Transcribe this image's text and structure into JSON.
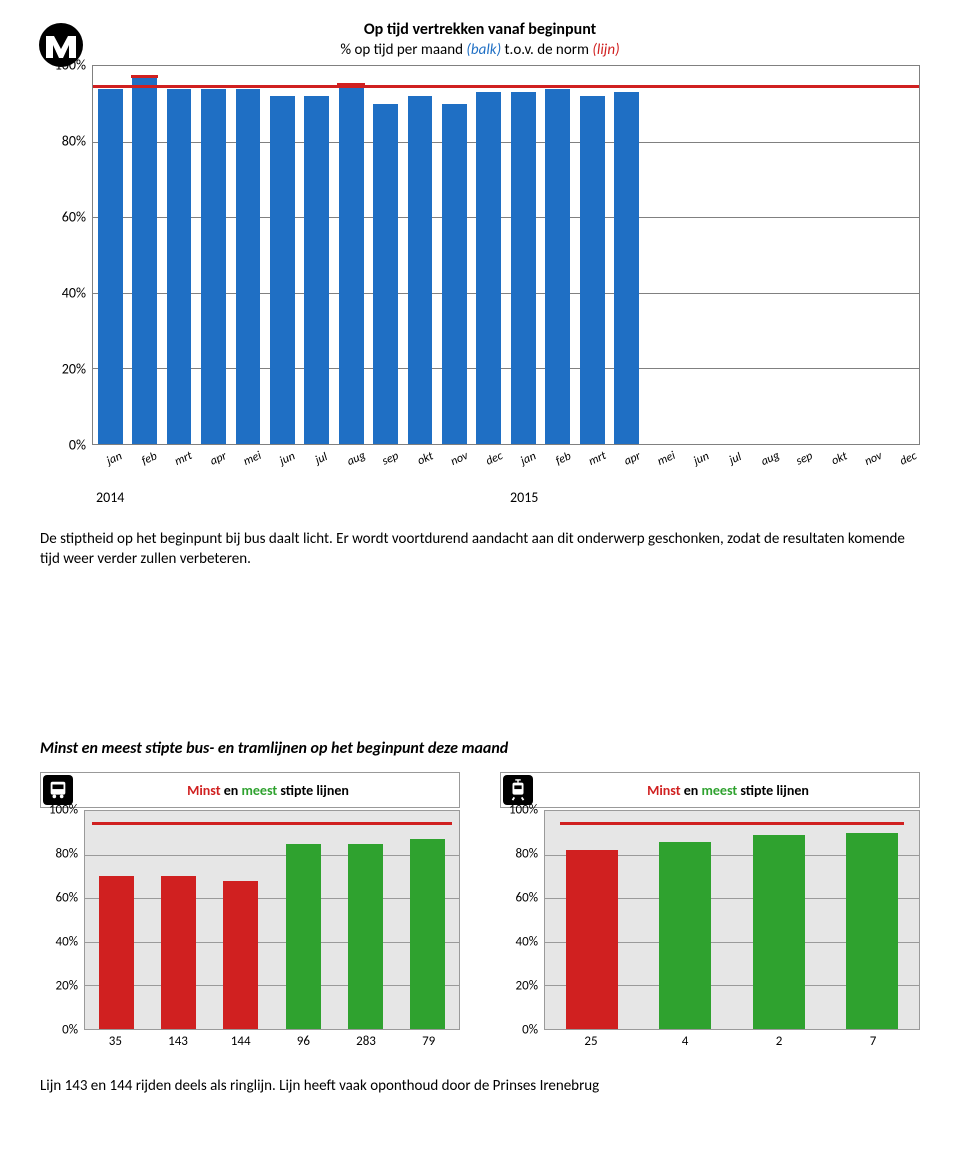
{
  "logo": {
    "bg": "#000000",
    "letter": "M",
    "letter_color": "#ffffff"
  },
  "main_chart": {
    "type": "bar",
    "title": "Op tijd vertrekken vanaf beginpunt",
    "subtitle_plain": "% op tijd per maand ",
    "subtitle_balk": "(balk)",
    "subtitle_mid": " t.o.v. de norm ",
    "subtitle_lijn": "(lijn)",
    "ylim": [
      0,
      100
    ],
    "ytick_step": 20,
    "yticks": [
      "0%",
      "20%",
      "40%",
      "60%",
      "80%",
      "100%"
    ],
    "bar_color": "#1f6fc4",
    "norm_color": "#d02020",
    "norm_value": 95,
    "grid_color": "#808080",
    "background": "#ffffff",
    "categories": [
      "jan",
      "feb",
      "mrt",
      "apr",
      "mei",
      "jun",
      "jul",
      "aug",
      "sep",
      "okt",
      "nov",
      "dec",
      "jan",
      "feb",
      "mrt",
      "apr",
      "mei",
      "jun",
      "jul",
      "aug",
      "sep",
      "okt",
      "nov",
      "dec"
    ],
    "values": [
      94,
      97,
      94,
      94,
      94,
      92,
      92,
      95,
      90,
      92,
      90,
      93,
      93,
      94,
      92,
      93,
      0,
      0,
      0,
      0,
      0,
      0,
      0,
      0
    ],
    "bar_top_marker": [
      false,
      true,
      false,
      false,
      false,
      false,
      false,
      true,
      false,
      false,
      false,
      false,
      false,
      false,
      false,
      false,
      false,
      false,
      false,
      false,
      false,
      false,
      false,
      false
    ],
    "years": [
      "2014",
      "2015"
    ]
  },
  "paragraph": "De stiptheid op het beginpunt bij bus daalt licht. Er wordt voortdurend aandacht aan dit onderwerp geschonken, zodat de resultaten komende tijd weer verder zullen verbeteren.",
  "section_title": "Minst en meest stipte bus- en tramlijnen op het beginpunt deze maand",
  "small_title_minst": "Minst",
  "small_title_mid": " en ",
  "small_title_meest": "meest",
  "small_title_tail": " stipte lijnen",
  "colors": {
    "red": "#d02020",
    "green": "#2fa22f",
    "panel_bg": "#e6e6e6",
    "panel_border": "#9a9a9a"
  },
  "bus_chart": {
    "type": "bar",
    "ylim": [
      0,
      100
    ],
    "ytick_step": 20,
    "yticks": [
      "0%",
      "20%",
      "40%",
      "60%",
      "80%",
      "100%"
    ],
    "norm_value": 95,
    "norm_span": [
      0.02,
      0.98
    ],
    "categories": [
      "35",
      "143",
      "144",
      "96",
      "283",
      "79"
    ],
    "values": [
      70,
      70,
      68,
      85,
      85,
      87
    ],
    "bar_colors": [
      "#d02020",
      "#d02020",
      "#d02020",
      "#2fa22f",
      "#2fa22f",
      "#2fa22f"
    ]
  },
  "tram_chart": {
    "type": "bar",
    "ylim": [
      0,
      100
    ],
    "ytick_step": 20,
    "yticks": [
      "0%",
      "20%",
      "40%",
      "60%",
      "80%",
      "100%"
    ],
    "norm_value": 95,
    "norm_span": [
      0.04,
      0.96
    ],
    "categories": [
      "25",
      "4",
      "2",
      "7"
    ],
    "values": [
      82,
      86,
      89,
      90
    ],
    "bar_colors": [
      "#d02020",
      "#2fa22f",
      "#2fa22f",
      "#2fa22f"
    ]
  },
  "footnote": "Lijn 143 en 144 rijden deels als ringlijn. Lijn heeft vaak oponthoud door de Prinses Irenebrug"
}
